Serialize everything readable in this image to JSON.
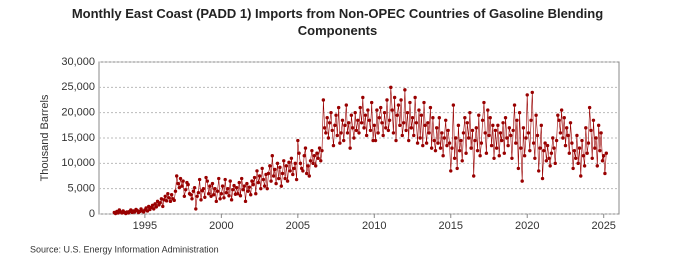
{
  "chart_data": {
    "type": "line",
    "title": "Monthly East Coast (PADD 1) Imports from Non-OPEC Countries of Gasoline Blending Components",
    "y_label": "Thousand Barrels",
    "source": "Source: U.S. Energy Information Administration",
    "xlim": [
      1992,
      2026
    ],
    "xticks": [
      1995,
      2000,
      2005,
      2010,
      2015,
      2020,
      2025
    ],
    "ylim": [
      0,
      30000
    ],
    "yticks": [
      0,
      {
        "value": 5000,
        "label": "5,000"
      },
      {
        "value": 10000,
        "label": "10,000"
      },
      {
        "value": 15000,
        "label": "15,000"
      },
      {
        "value": 20000,
        "label": "20,000"
      },
      {
        "value": 25000,
        "label": "25,000"
      },
      {
        "value": 30000,
        "label": "30,000"
      }
    ],
    "grid": true,
    "x": [
      1993.0,
      1993.08,
      1993.17,
      1993.25,
      1993.33,
      1993.42,
      1993.5,
      1993.58,
      1993.67,
      1993.75,
      1993.83,
      1993.92,
      1994.0,
      1994.08,
      1994.17,
      1994.25,
      1994.33,
      1994.42,
      1994.5,
      1994.58,
      1994.67,
      1994.75,
      1994.83,
      1994.92,
      1995.0,
      1995.08,
      1995.17,
      1995.25,
      1995.33,
      1995.42,
      1995.5,
      1995.58,
      1995.67,
      1995.75,
      1995.83,
      1995.92,
      1996.0,
      1996.08,
      1996.17,
      1996.25,
      1996.33,
      1996.42,
      1996.5,
      1996.58,
      1996.67,
      1996.75,
      1996.83,
      1996.92,
      1997.0,
      1997.08,
      1997.17,
      1997.25,
      1997.33,
      1997.42,
      1997.5,
      1997.58,
      1997.67,
      1997.75,
      1997.83,
      1997.92,
      1998.0,
      1998.08,
      1998.17,
      1998.25,
      1998.33,
      1998.42,
      1998.5,
      1998.58,
      1998.67,
      1998.75,
      1998.83,
      1998.92,
      1999.0,
      1999.08,
      1999.17,
      1999.25,
      1999.33,
      1999.42,
      1999.5,
      1999.58,
      1999.67,
      1999.75,
      1999.83,
      1999.92,
      2000.0,
      2000.08,
      2000.17,
      2000.25,
      2000.33,
      2000.42,
      2000.5,
      2000.58,
      2000.67,
      2000.75,
      2000.83,
      2000.92,
      2001.0,
      2001.08,
      2001.17,
      2001.25,
      2001.33,
      2001.42,
      2001.5,
      2001.58,
      2001.67,
      2001.75,
      2001.83,
      2001.92,
      2002.0,
      2002.08,
      2002.17,
      2002.25,
      2002.33,
      2002.42,
      2002.5,
      2002.58,
      2002.67,
      2002.75,
      2002.83,
      2002.92,
      2003.0,
      2003.08,
      2003.17,
      2003.25,
      2003.33,
      2003.42,
      2003.5,
      2003.58,
      2003.67,
      2003.75,
      2003.83,
      2003.92,
      2004.0,
      2004.08,
      2004.17,
      2004.25,
      2004.33,
      2004.42,
      2004.5,
      2004.58,
      2004.67,
      2004.75,
      2004.83,
      2004.92,
      2005.0,
      2005.08,
      2005.17,
      2005.25,
      2005.33,
      2005.42,
      2005.5,
      2005.58,
      2005.67,
      2005.75,
      2005.83,
      2005.92,
      2006.0,
      2006.08,
      2006.17,
      2006.25,
      2006.33,
      2006.42,
      2006.5,
      2006.58,
      2006.67,
      2006.75,
      2006.83,
      2006.92,
      2007.0,
      2007.08,
      2007.17,
      2007.25,
      2007.33,
      2007.42,
      2007.5,
      2007.58,
      2007.67,
      2007.75,
      2007.83,
      2007.92,
      2008.0,
      2008.08,
      2008.17,
      2008.25,
      2008.33,
      2008.42,
      2008.5,
      2008.58,
      2008.67,
      2008.75,
      2008.83,
      2008.92,
      2009.0,
      2009.08,
      2009.17,
      2009.25,
      2009.33,
      2009.42,
      2009.5,
      2009.58,
      2009.67,
      2009.75,
      2009.83,
      2009.92,
      2010.0,
      2010.08,
      2010.17,
      2010.25,
      2010.33,
      2010.42,
      2010.5,
      2010.58,
      2010.67,
      2010.75,
      2010.83,
      2010.92,
      2011.0,
      2011.08,
      2011.17,
      2011.25,
      2011.33,
      2011.42,
      2011.5,
      2011.58,
      2011.67,
      2011.75,
      2011.83,
      2011.92,
      2012.0,
      2012.08,
      2012.17,
      2012.25,
      2012.33,
      2012.42,
      2012.5,
      2012.58,
      2012.67,
      2012.75,
      2012.83,
      2012.92,
      2013.0,
      2013.08,
      2013.17,
      2013.25,
      2013.33,
      2013.42,
      2013.5,
      2013.58,
      2013.67,
      2013.75,
      2013.83,
      2013.92,
      2014.0,
      2014.08,
      2014.17,
      2014.25,
      2014.33,
      2014.42,
      2014.5,
      2014.58,
      2014.67,
      2014.75,
      2014.83,
      2014.92,
      2015.0,
      2015.08,
      2015.17,
      2015.25,
      2015.33,
      2015.42,
      2015.5,
      2015.58,
      2015.67,
      2015.75,
      2015.83,
      2015.92,
      2016.0,
      2016.08,
      2016.17,
      2016.25,
      2016.33,
      2016.42,
      2016.5,
      2016.58,
      2016.67,
      2016.75,
      2016.83,
      2016.92,
      2017.0,
      2017.08,
      2017.17,
      2017.25,
      2017.33,
      2017.42,
      2017.5,
      2017.58,
      2017.67,
      2017.75,
      2017.83,
      2017.92,
      2018.0,
      2018.08,
      2018.17,
      2018.25,
      2018.33,
      2018.42,
      2018.5,
      2018.58,
      2018.67,
      2018.75,
      2018.83,
      2018.92,
      2019.0,
      2019.08,
      2019.17,
      2019.25,
      2019.33,
      2019.42,
      2019.5,
      2019.58,
      2019.67,
      2019.75,
      2019.83,
      2019.92,
      2020.0,
      2020.08,
      2020.17,
      2020.25,
      2020.33,
      2020.42,
      2020.5,
      2020.58,
      2020.67,
      2020.75,
      2020.83,
      2020.92,
      2021.0,
      2021.08,
      2021.17,
      2021.25,
      2021.33,
      2021.42,
      2021.5,
      2021.58,
      2021.67,
      2021.75,
      2021.83,
      2021.92,
      2022.0,
      2022.08,
      2022.17,
      2022.25,
      2022.33,
      2022.42,
      2022.5,
      2022.58,
      2022.67,
      2022.75,
      2022.83,
      2022.92,
      2023.0,
      2023.08,
      2023.17,
      2023.25,
      2023.33,
      2023.42,
      2023.5,
      2023.58,
      2023.67,
      2023.75,
      2023.83,
      2023.92,
      2024.0,
      2024.08,
      2024.17,
      2024.25,
      2024.33,
      2024.42,
      2024.5,
      2024.58,
      2024.67,
      2024.75,
      2024.83,
      2024.92,
      2025.0,
      2025.08,
      2025.17
    ],
    "series": [
      {
        "color": "#990000",
        "values": [
          300,
          100,
          500,
          200,
          800,
          400,
          200,
          600,
          300,
          100,
          400,
          200,
          500,
          800,
          300,
          600,
          400,
          900,
          700,
          300,
          500,
          1000,
          600,
          400,
          800,
          1200,
          600,
          1500,
          900,
          1300,
          1700,
          1000,
          2000,
          1400,
          2500,
          1800,
          2200,
          3000,
          1500,
          2800,
          3500,
          2600,
          4000,
          3200,
          2500,
          3800,
          3000,
          2700,
          4500,
          7500,
          6000,
          5200,
          7000,
          5500,
          6500,
          3500,
          4800,
          6200,
          5800,
          4000,
          3800,
          3000,
          4500,
          5200,
          1000,
          3500,
          4200,
          6800,
          2800,
          4600,
          5000,
          3300,
          7200,
          6500,
          4000,
          5500,
          3500,
          6000,
          3800,
          5000,
          2500,
          4500,
          7000,
          3000,
          4000,
          5500,
          3200,
          6800,
          4200,
          5000,
          3600,
          6500,
          2800,
          4800,
          5600,
          3900,
          5200,
          4000,
          6200,
          3600,
          7000,
          4800,
          5500,
          2500,
          6000,
          4500,
          5300,
          3800,
          6500,
          5800,
          7200,
          4000,
          8500,
          6200,
          7500,
          5000,
          9000,
          6800,
          5500,
          7800,
          5000,
          8000,
          9500,
          6500,
          11500,
          7500,
          8800,
          6000,
          10000,
          7000,
          9200,
          5500,
          8000,
          10500,
          7000,
          9500,
          6500,
          10200,
          8500,
          11000,
          7800,
          9000,
          10000,
          6800,
          14500,
          12000,
          10000,
          9000,
          8500,
          11500,
          13000,
          8000,
          9500,
          7500,
          10500,
          12500,
          10000,
          11500,
          9500,
          12000,
          11000,
          13000,
          10500,
          12500,
          22500,
          17000,
          16000,
          19000,
          15000,
          18000,
          20000,
          16500,
          13500,
          17500,
          19500,
          15500,
          21000,
          14000,
          16000,
          18500,
          14500,
          17500,
          21500,
          16000,
          18000,
          13000,
          19500,
          17000,
          15000,
          20000,
          16500,
          18500,
          16000,
          21000,
          18000,
          23000,
          17000,
          19500,
          15500,
          20500,
          18500,
          16500,
          22000,
          14500,
          17500,
          14500,
          20500,
          16000,
          19000,
          21000,
          18000,
          15500,
          20000,
          17000,
          22500,
          16500,
          18500,
          25000,
          20500,
          16000,
          23000,
          14500,
          19500,
          21500,
          17500,
          22500,
          15500,
          18000,
          24500,
          16500,
          20000,
          14500,
          22000,
          17000,
          19000,
          15500,
          23000,
          18000,
          14000,
          20500,
          15000,
          19500,
          13500,
          22000,
          17500,
          14000,
          18000,
          16000,
          21000,
          13000,
          19000,
          14500,
          12500,
          17000,
          14000,
          19000,
          13000,
          16000,
          11500,
          15000,
          18500,
          13500,
          16500,
          14000,
          8500,
          13000,
          21500,
          11000,
          15000,
          9000,
          17500,
          12500,
          14500,
          10500,
          16000,
          19000,
          12000,
          18000,
          15000,
          20000,
          13000,
          16500,
          7500,
          14500,
          17000,
          12500,
          19500,
          11500,
          14000,
          18500,
          22000,
          16000,
          12000,
          20500,
          15500,
          19000,
          13500,
          17500,
          11000,
          16500,
          13000,
          17500,
          11500,
          16000,
          14500,
          18000,
          12000,
          19000,
          15000,
          13500,
          17000,
          15500,
          11000,
          16500,
          21500,
          14000,
          18500,
          9000,
          20000,
          13000,
          6500,
          17000,
          11500,
          15000,
          23500,
          16000,
          12500,
          18500,
          24000,
          14000,
          11000,
          19500,
          15500,
          8500,
          13000,
          17500,
          7000,
          12500,
          14000,
          10500,
          13500,
          11000,
          9500,
          12000,
          15000,
          13000,
          10000,
          14500,
          19500,
          18500,
          16000,
          20500,
          15000,
          19000,
          13500,
          17000,
          15500,
          12000,
          18000,
          14000,
          9000,
          12500,
          11000,
          15500,
          10000,
          13000,
          7500,
          14500,
          11500,
          9500,
          17000,
          12000,
          14000,
          21000,
          16500,
          11000,
          18500,
          13000,
          15000,
          9500,
          17500,
          12500,
          16000,
          10500,
          11500,
          8000,
          12000
        ]
      }
    ]
  }
}
